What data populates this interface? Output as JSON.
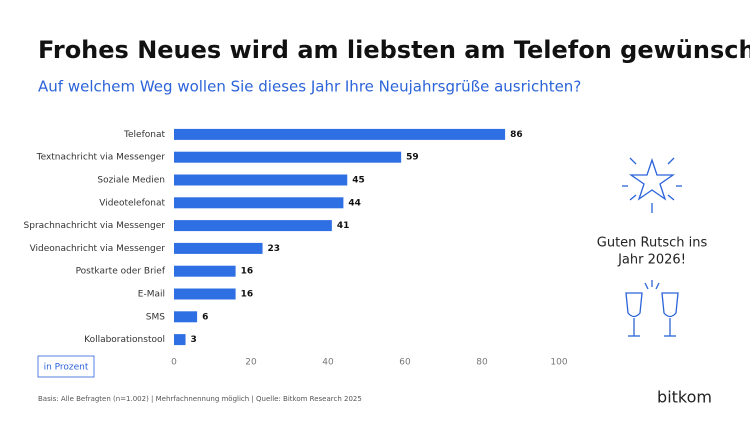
{
  "chart_data": {
    "type": "hbar",
    "title": "Frohes Neues wird am liebsten am Telefon gewünscht",
    "subtitle": "Auf welchem Weg wollen Sie dieses Jahr Ihre Neujahrsgrüße ausrichten?",
    "categories": [
      "Telefonat",
      "Textnachricht via Messenger",
      "Soziale Medien",
      "Videotelefonat",
      "Sprachnachricht via Messenger",
      "Videonachricht via Messenger",
      "Postkarte oder Brief",
      "E-Mail",
      "SMS",
      "Kollaborationstool"
    ],
    "values": [
      86,
      59,
      45,
      44,
      41,
      23,
      16,
      16,
      6,
      3
    ],
    "color": "#2f6fe4",
    "xlim": [
      0,
      100
    ],
    "xticks": [
      0,
      20,
      40,
      60,
      80,
      100
    ],
    "grid": false,
    "unit_note": "in Prozent",
    "source": "Basis: Alle Befragten (n=1.002) | Mehrfachnennung möglich | Quelle: Bitkom Research 2025",
    "greeting": [
      "Guten Rutsch ins",
      "Jahr 2026!"
    ],
    "logo": "bitkom"
  }
}
